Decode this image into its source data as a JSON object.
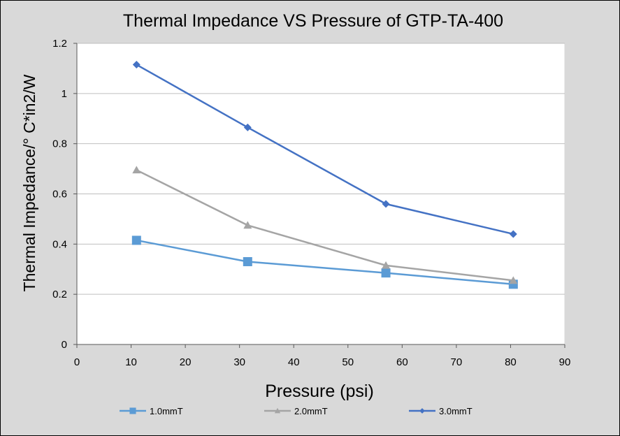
{
  "chart_data": {
    "type": "line",
    "title": "Thermal Impedance VS Pressure of GTP-TA-400",
    "xlabel": "Pressure (psi)",
    "ylabel": "Thermal Impedance/° C*in2/W",
    "xlim": [
      0,
      90
    ],
    "ylim": [
      0,
      1.2
    ],
    "xticks": [
      0,
      10,
      20,
      30,
      40,
      50,
      60,
      70,
      80,
      90
    ],
    "yticks": [
      0,
      0.2,
      0.4,
      0.6,
      0.8,
      1,
      1.2
    ],
    "ytick_labels": [
      "0",
      "0.2",
      "0.4",
      "0.6",
      "0.8",
      "1",
      "1.2"
    ],
    "grid": "horizontal",
    "legend_position": "bottom",
    "series": [
      {
        "name": "1.0mmT",
        "color": "#5b9bd5",
        "marker": "square",
        "x": [
          11,
          31.5,
          57,
          80.5
        ],
        "y": [
          0.415,
          0.33,
          0.285,
          0.24
        ]
      },
      {
        "name": "2.0mmT",
        "color": "#a5a5a5",
        "marker": "triangle",
        "x": [
          11,
          31.5,
          57,
          80.5
        ],
        "y": [
          0.695,
          0.475,
          0.315,
          0.255
        ]
      },
      {
        "name": "3.0mmT",
        "color": "#4472c4",
        "marker": "diamond",
        "x": [
          11,
          31.5,
          57,
          80.5
        ],
        "y": [
          1.115,
          0.865,
          0.56,
          0.44
        ]
      }
    ]
  }
}
